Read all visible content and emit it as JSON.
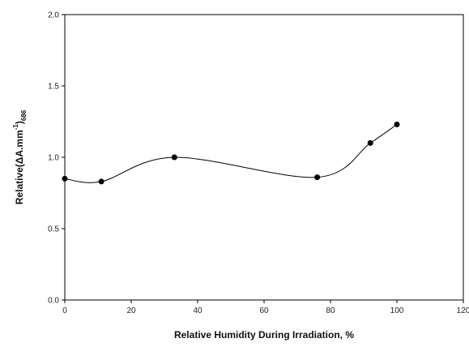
{
  "chart_data": {
    "type": "scatter",
    "title": "",
    "xlabel": "Relative Humidity During Irradiation, %",
    "ylabel": {
      "main": "Relative(ΔA.mm",
      "sup": "-1",
      "close": ")",
      "sub": "686"
    },
    "xlim": [
      0,
      120
    ],
    "ylim": [
      0.0,
      2.0
    ],
    "xticks": [
      "0",
      "20",
      "40",
      "60",
      "80",
      "100",
      "120"
    ],
    "yticks": [
      "0.0",
      "0.5",
      "1.0",
      "1.5",
      "2.0"
    ],
    "grid": false,
    "smooth_line": true,
    "colors": {
      "line": "#000000",
      "marker": "#000000",
      "axis": "#000000"
    },
    "series": [
      {
        "x": [
          0,
          11,
          33,
          76,
          92,
          100
        ],
        "y": [
          0.85,
          0.83,
          1.0,
          0.86,
          1.1,
          1.23
        ]
      }
    ]
  }
}
